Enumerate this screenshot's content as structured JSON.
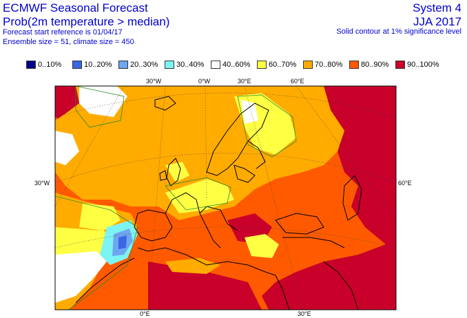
{
  "header": {
    "title": "ECMWF Seasonal Forecast",
    "subtitle": "Prob(2m temperature > median)",
    "start_ref": "Forecast start reference is 01/04/17",
    "ensemble": "Ensemble size = 51, climate size = 450",
    "system": "System 4",
    "season": "JJA 2017",
    "note": "Solid contour at 1% significance level"
  },
  "legend": [
    {
      "label": "0..10%",
      "color": "#00008b"
    },
    {
      "label": "10..20%",
      "color": "#3a66e6"
    },
    {
      "label": "20..30%",
      "color": "#6fa6f0"
    },
    {
      "label": "30..40%",
      "color": "#7df4f4"
    },
    {
      "label": "40..60%",
      "color": "#ffffff"
    },
    {
      "label": "60..70%",
      "color": "#ffff44"
    },
    {
      "label": "70..80%",
      "color": "#ffab00"
    },
    {
      "label": "80..90%",
      "color": "#ff5a00"
    },
    {
      "label": "90..100%",
      "color": "#c8002a"
    }
  ],
  "map": {
    "lon_labels_top": [
      "30°W",
      "0°W",
      "30°E",
      "60°E"
    ],
    "lon_labels_bottom": [
      "0°E",
      "30°E"
    ],
    "lat_label_left": "30°W",
    "lat_label_right": "60°E"
  }
}
